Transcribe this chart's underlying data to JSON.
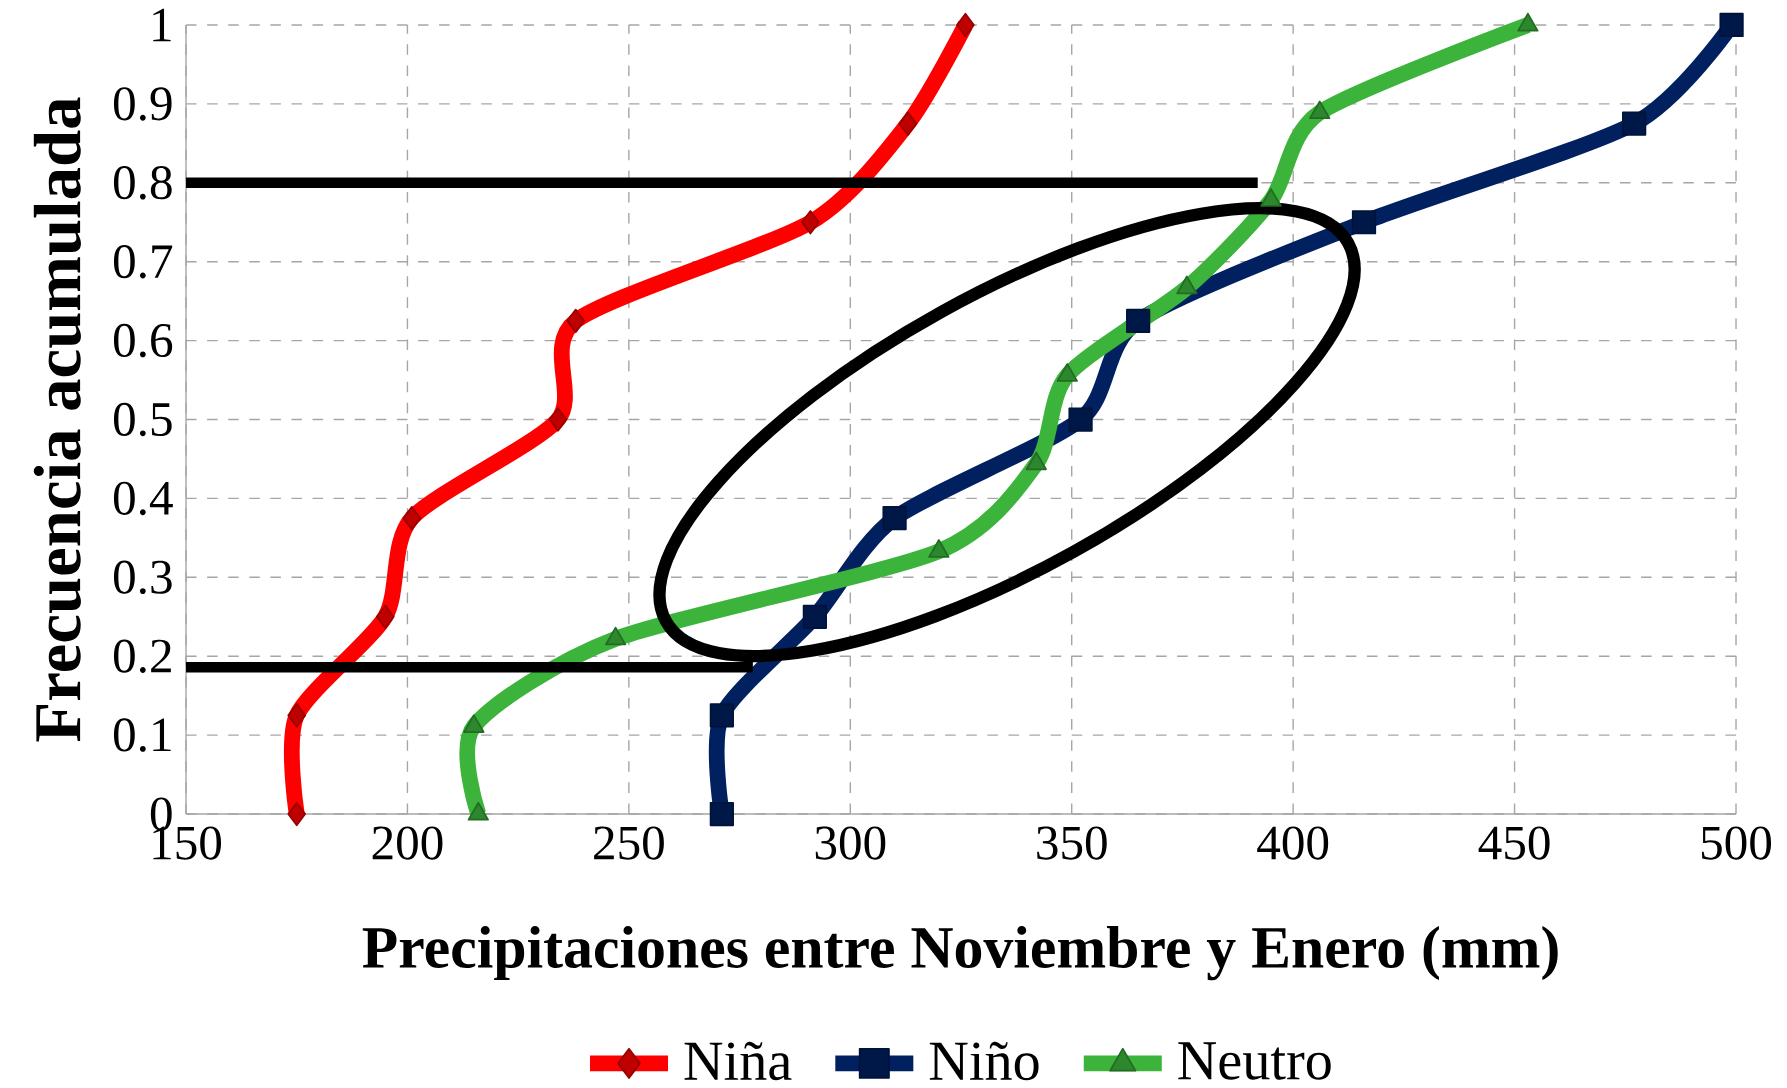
{
  "chart_data": {
    "type": "line",
    "xlabel": "Precipitaciones entre Noviembre y Enero (mm)",
    "ylabel": "Frecuencia acumulada",
    "xlim": [
      150,
      500
    ],
    "ylim": [
      0,
      1
    ],
    "xticks": [
      150,
      200,
      250,
      300,
      350,
      400,
      450,
      500
    ],
    "yticks": [
      0,
      0.1,
      0.2,
      0.3,
      0.4,
      0.5,
      0.6,
      0.7,
      0.8,
      0.9,
      1
    ],
    "grid": true,
    "legend": "bottom",
    "line_style": "solid",
    "series": [
      {
        "name": "Niña",
        "color": "#ff0000",
        "marker": "diamond",
        "x": [
          175,
          175,
          195,
          201,
          234,
          238,
          291,
          313,
          326
        ],
        "values": [
          0,
          0.125,
          0.25,
          0.375,
          0.5,
          0.625,
          0.75,
          0.875,
          1
        ]
      },
      {
        "name": "Niño",
        "color": "#002060",
        "marker": "square",
        "x": [
          271,
          271,
          292,
          310,
          352,
          365,
          416,
          477,
          499
        ],
        "values": [
          0,
          0.125,
          0.25,
          0.375,
          0.5,
          0.625,
          0.75,
          0.875,
          1
        ]
      },
      {
        "name": "Neutro",
        "color": "#3cb43c",
        "marker": "triangle",
        "x": [
          216,
          215,
          247,
          320,
          342,
          349,
          376,
          395,
          406,
          453
        ],
        "values": [
          0,
          0.111,
          0.222,
          0.333,
          0.444,
          0.556,
          0.667,
          0.778,
          0.889,
          1
        ]
      },
      {
        "color": "#000000",
        "marker": "none",
        "x": [
          150,
          392
        ],
        "values": [
          0.8,
          0.8
        ]
      },
      {
        "color": "#000000",
        "marker": "none",
        "x": [
          150,
          278
        ],
        "values": [
          0.186,
          0.186
        ]
      }
    ]
  }
}
